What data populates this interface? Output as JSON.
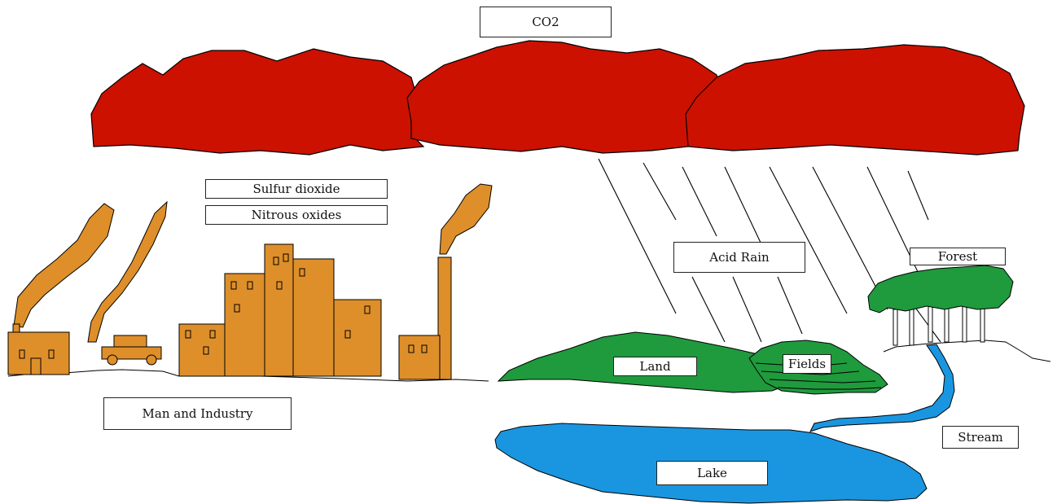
{
  "labels": {
    "co2": "CO2",
    "sulfur": "Sulfur dioxide",
    "nitrous": "Nitrous oxides",
    "man_industry": "Man and Industry",
    "acid_rain": "Acid Rain",
    "forest": "Forest",
    "land": "Land",
    "fields": "Fields",
    "stream": "Stream",
    "lake": "Lake"
  },
  "colors": {
    "cloud": "#cc1100",
    "industry": "#de8f2a",
    "vegetation": "#1f9a3d",
    "water": "#1a96e0",
    "outline": "#000000"
  }
}
